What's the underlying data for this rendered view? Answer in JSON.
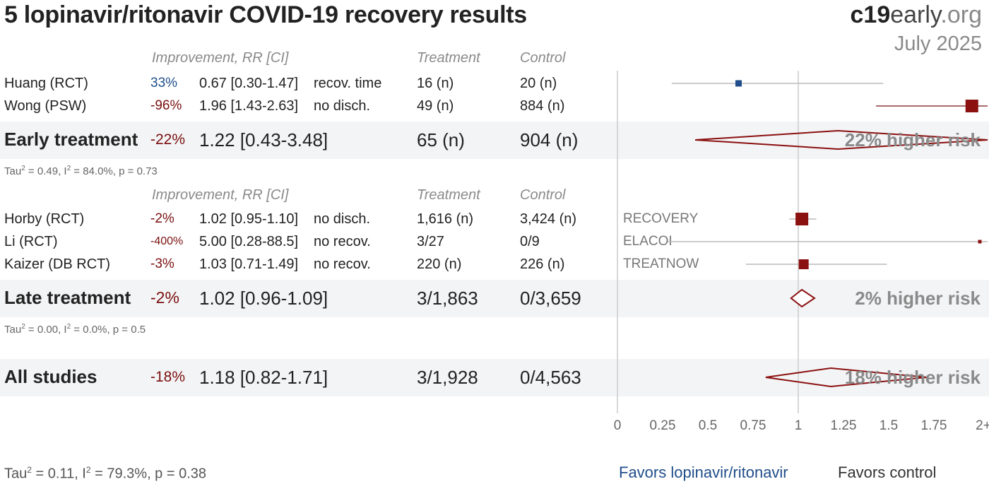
{
  "title": "5 lopinavir/ritonavir COVID-19 recovery results",
  "brand": {
    "part1": "c19",
    "part2": "early",
    "part3": ".org"
  },
  "date": "July 2025",
  "headers": {
    "improvement": "Improvement, RR [CI]",
    "treatment": "Treatment",
    "control": "Control"
  },
  "colors": {
    "favors_treatment": "#1f4e8a",
    "favors_control": "#8b1010",
    "band": "#f3f4f6"
  },
  "groups": [
    {
      "studies": [
        {
          "name": "Huang (RCT)",
          "improvement": "33%",
          "rr_text": "0.67 [0.30-1.47]",
          "outcome": "recov. time",
          "treatment": "16 (n)",
          "control": "20 (n)",
          "site": "",
          "rr": 0.67,
          "lo": 0.3,
          "hi": 1.47,
          "favors": "treatment"
        },
        {
          "name": "Wong (PSW)",
          "improvement": "-96%",
          "rr_text": "1.96 [1.43-2.63]",
          "outcome": "no disch.",
          "treatment": "49 (n)",
          "control": "884 (n)",
          "site": "",
          "rr": 1.96,
          "lo": 1.43,
          "hi": 2.63,
          "favors": "control"
        }
      ],
      "summary": {
        "name": "Early treatment",
        "improvement": "-22%",
        "rr_text": "1.22 [0.43-3.48]",
        "treatment": "65 (n)",
        "control": "904 (n)",
        "risk_label": "22% higher risk",
        "rr": 1.22,
        "lo": 0.43,
        "hi": 3.48
      },
      "stats": {
        "tau2": "0.49",
        "i2": "84.0%",
        "p": "0.73"
      }
    },
    {
      "studies": [
        {
          "name": "Horby (RCT)",
          "improvement": "-2%",
          "rr_text": "1.02 [0.95-1.10]",
          "outcome": "no disch.",
          "treatment": "1,616 (n)",
          "control": "3,424 (n)",
          "site": "RECOVERY",
          "rr": 1.02,
          "lo": 0.95,
          "hi": 1.1,
          "favors": "control"
        },
        {
          "name": "Li (RCT)",
          "improvement": "-400%",
          "rr_text": "5.00 [0.28-88.5]",
          "outcome": "no recov.",
          "treatment": "3/27",
          "control": "0/9",
          "site": "ELACOI",
          "rr": 5.0,
          "lo": 0.28,
          "hi": 88.5,
          "favors": "control"
        },
        {
          "name": "Kaizer (DB RCT)",
          "improvement": "-3%",
          "rr_text": "1.03 [0.71-1.49]",
          "outcome": "no recov.",
          "treatment": "220 (n)",
          "control": "226 (n)",
          "site": "TREATNOW",
          "rr": 1.03,
          "lo": 0.71,
          "hi": 1.49,
          "favors": "control"
        }
      ],
      "summary": {
        "name": "Late treatment",
        "improvement": "-2%",
        "rr_text": "1.02 [0.96-1.09]",
        "treatment": "3/1,863",
        "control": "0/3,659",
        "risk_label": "2% higher risk",
        "rr": 1.02,
        "lo": 0.96,
        "hi": 1.09
      },
      "stats": {
        "tau2": "0.00",
        "i2": "0.0%",
        "p": "0.5"
      }
    }
  ],
  "overall": {
    "name": "All studies",
    "improvement": "-18%",
    "rr_text": "1.18 [0.82-1.71]",
    "treatment": "3/1,928",
    "control": "0/4,563",
    "risk_label": "18% higher risk",
    "rr": 1.18,
    "lo": 0.82,
    "hi": 1.71
  },
  "overall_stats": {
    "tau2": "0.11",
    "i2": "79.3%",
    "p": "0.38"
  },
  "footer": {
    "favors_treatment": "Favors lopinavir/ritonavir",
    "favors_control": "Favors control"
  },
  "chart_data": {
    "type": "forest",
    "x_axis": {
      "ticks": [
        "0",
        "0.25",
        "0.5",
        "0.75",
        "1",
        "1.25",
        "1.5",
        "1.75",
        "2+"
      ],
      "range": [
        0,
        2
      ],
      "reference_line": 1
    },
    "studies": [
      {
        "name": "Huang (RCT)",
        "rr": 0.67,
        "lo": 0.3,
        "hi": 1.47
      },
      {
        "name": "Wong (PSW)",
        "rr": 1.96,
        "lo": 1.43,
        "hi": 2.63
      },
      {
        "name": "Horby (RCT)",
        "rr": 1.02,
        "lo": 0.95,
        "hi": 1.1
      },
      {
        "name": "Li (RCT)",
        "rr": 5.0,
        "lo": 0.28,
        "hi": 88.5
      },
      {
        "name": "Kaizer (DB RCT)",
        "rr": 1.03,
        "lo": 0.71,
        "hi": 1.49
      }
    ],
    "summaries": [
      {
        "name": "Early treatment",
        "rr": 1.22,
        "lo": 0.43,
        "hi": 3.48
      },
      {
        "name": "Late treatment",
        "rr": 1.02,
        "lo": 0.96,
        "hi": 1.09
      },
      {
        "name": "All studies",
        "rr": 1.18,
        "lo": 0.82,
        "hi": 1.71
      }
    ]
  }
}
